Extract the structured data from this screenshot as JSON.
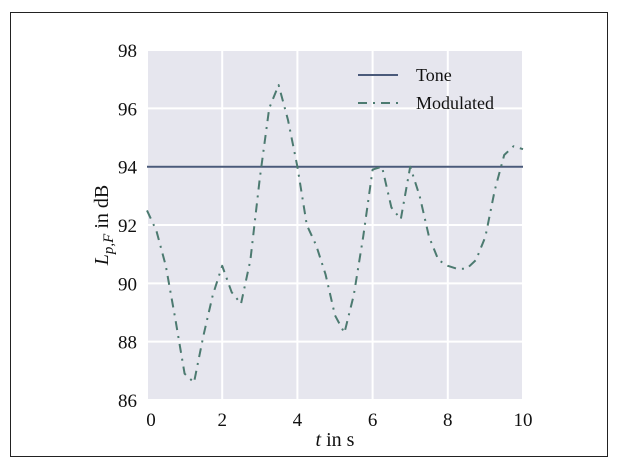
{
  "chart_data": {
    "type": "line",
    "xlabel_italic": "t",
    "xlabel_rest": " in s",
    "ylabel_main": "L",
    "ylabel_sub": "p,F",
    "ylabel_rest": "  in dB",
    "xlim": [
      0,
      10
    ],
    "ylim": [
      86,
      98
    ],
    "xticks": [
      0,
      2,
      4,
      6,
      8,
      10
    ],
    "yticks": [
      86,
      88,
      90,
      92,
      94,
      96,
      98
    ],
    "grid": true,
    "legend_position": "top-right",
    "series": [
      {
        "name": "Tone",
        "style": "solid",
        "color": "#4a5a7a",
        "x": [
          0,
          10
        ],
        "y": [
          94,
          94
        ]
      },
      {
        "name": "Modulated",
        "style": "dashdot",
        "color": "#4c7a70",
        "x": [
          0,
          0.25,
          0.5,
          0.75,
          1.0,
          1.25,
          1.5,
          1.75,
          2.0,
          2.25,
          2.5,
          2.75,
          3.0,
          3.25,
          3.5,
          3.75,
          4.0,
          4.25,
          4.5,
          4.75,
          5.0,
          5.25,
          5.5,
          5.75,
          6.0,
          6.25,
          6.5,
          6.75,
          7.0,
          7.25,
          7.5,
          7.75,
          8.0,
          8.25,
          8.5,
          8.75,
          9.0,
          9.25,
          9.5,
          9.75,
          10.0
        ],
        "y": [
          92.5,
          91.8,
          90.6,
          88.8,
          86.9,
          86.6,
          88.2,
          89.6,
          90.6,
          89.7,
          89.3,
          90.8,
          93.6,
          96.0,
          96.8,
          95.6,
          94.0,
          92.0,
          91.3,
          90.3,
          88.9,
          88.3,
          89.6,
          91.6,
          93.9,
          94.0,
          92.6,
          92.2,
          94.0,
          93.0,
          91.6,
          90.8,
          90.6,
          90.5,
          90.5,
          90.8,
          91.6,
          93.2,
          94.4,
          94.7,
          94.6
        ]
      }
    ]
  }
}
